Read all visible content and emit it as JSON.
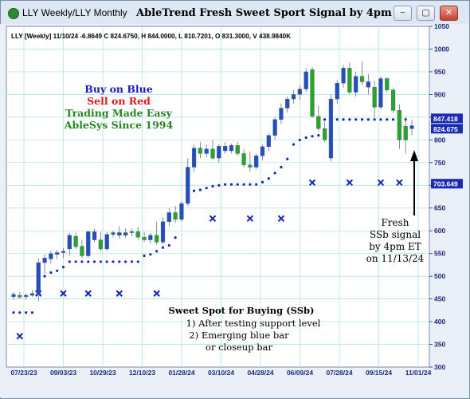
{
  "window": {
    "title": "LLY Weekly/LLY Monthly",
    "chart_title": "AbleTrend Fresh Sweet Sport Signal by 4pm ET",
    "buttons": {
      "minimize": "−",
      "restore": "▢",
      "close": "✕"
    }
  },
  "header_line": "LLY [Weekly] 11/10/24  -6.8649 C 824.6750, H 844.0000, L 810.7201, O 831.3000, V 438.9840K",
  "legend_text": [
    "Buy on Blue",
    "Sell on Red",
    "Trading Made Easy",
    "AbleSys Since 1994"
  ],
  "annotations": {
    "fresh_signal": [
      "Fresh",
      "SSb signal",
      "by 4pm ET",
      "on 11/13/24"
    ],
    "sweet_spot": [
      "Sweet Spot for Buying (SSb)",
      "1) After testing support level",
      "2) Emerging blue bar",
      "or closeup bar"
    ]
  },
  "colors": {
    "up_bar": "#2050c0",
    "down_bar": "#22a822",
    "stop_dot": "#1428b4",
    "legend_blue": "#1a1ab8",
    "legend_red": "#e01818",
    "legend_green": "#208a20",
    "grid": "#a8e0e0",
    "price_tag_bg": "#1c2cb0"
  },
  "chart_data": {
    "type": "candlestick",
    "title": "AbleTrend Fresh Sweet Sport Signal by 4pm ET",
    "x_ticks": [
      "07/23/23",
      "09/03/23",
      "10/29/23",
      "12/10/23",
      "01/28/24",
      "03/10/24",
      "04/28/24",
      "06/09/24",
      "07/28/24",
      "09/15/24",
      "11/01/24"
    ],
    "y_ticks": [
      300,
      350,
      400,
      450,
      500,
      550,
      600,
      650,
      700,
      750,
      800,
      850,
      900,
      950,
      1000,
      1050
    ],
    "ylim": [
      300,
      1050
    ],
    "price_tags": [
      {
        "label": "847.418",
        "value": 847.418
      },
      {
        "label": "824.675",
        "value": 824.675
      },
      {
        "label": "703.649",
        "value": 703.649
      }
    ],
    "candles": [
      {
        "o": 455,
        "h": 465,
        "l": 448,
        "c": 460,
        "color": "up"
      },
      {
        "o": 458,
        "h": 466,
        "l": 450,
        "c": 454,
        "color": "down"
      },
      {
        "o": 455,
        "h": 462,
        "l": 448,
        "c": 458,
        "color": "up"
      },
      {
        "o": 458,
        "h": 470,
        "l": 455,
        "c": 462,
        "color": "up"
      },
      {
        "o": 460,
        "h": 540,
        "l": 445,
        "c": 530,
        "color": "up"
      },
      {
        "o": 530,
        "h": 548,
        "l": 505,
        "c": 540,
        "color": "up"
      },
      {
        "o": 538,
        "h": 556,
        "l": 528,
        "c": 550,
        "color": "up"
      },
      {
        "o": 548,
        "h": 558,
        "l": 538,
        "c": 552,
        "color": "up"
      },
      {
        "o": 552,
        "h": 562,
        "l": 540,
        "c": 555,
        "color": "up"
      },
      {
        "o": 560,
        "h": 595,
        "l": 545,
        "c": 590,
        "color": "up"
      },
      {
        "o": 588,
        "h": 596,
        "l": 560,
        "c": 565,
        "color": "down"
      },
      {
        "o": 566,
        "h": 580,
        "l": 540,
        "c": 545,
        "color": "down"
      },
      {
        "o": 545,
        "h": 600,
        "l": 540,
        "c": 598,
        "color": "up"
      },
      {
        "o": 598,
        "h": 605,
        "l": 575,
        "c": 580,
        "color": "up"
      },
      {
        "o": 580,
        "h": 598,
        "l": 555,
        "c": 560,
        "color": "down"
      },
      {
        "o": 560,
        "h": 598,
        "l": 555,
        "c": 592,
        "color": "up"
      },
      {
        "o": 592,
        "h": 600,
        "l": 585,
        "c": 596,
        "color": "up"
      },
      {
        "o": 596,
        "h": 610,
        "l": 582,
        "c": 590,
        "color": "up"
      },
      {
        "o": 590,
        "h": 605,
        "l": 585,
        "c": 596,
        "color": "up"
      },
      {
        "o": 596,
        "h": 605,
        "l": 588,
        "c": 598,
        "color": "up"
      },
      {
        "o": 598,
        "h": 608,
        "l": 580,
        "c": 586,
        "color": "down"
      },
      {
        "o": 586,
        "h": 598,
        "l": 575,
        "c": 580,
        "color": "down"
      },
      {
        "o": 580,
        "h": 595,
        "l": 572,
        "c": 590,
        "color": "up"
      },
      {
        "o": 590,
        "h": 620,
        "l": 570,
        "c": 575,
        "color": "down"
      },
      {
        "o": 575,
        "h": 630,
        "l": 570,
        "c": 620,
        "color": "up"
      },
      {
        "o": 620,
        "h": 650,
        "l": 610,
        "c": 640,
        "color": "up"
      },
      {
        "o": 640,
        "h": 655,
        "l": 618,
        "c": 625,
        "color": "down"
      },
      {
        "o": 625,
        "h": 665,
        "l": 620,
        "c": 660,
        "color": "up"
      },
      {
        "o": 660,
        "h": 760,
        "l": 655,
        "c": 740,
        "color": "up"
      },
      {
        "o": 740,
        "h": 790,
        "l": 730,
        "c": 782,
        "color": "up"
      },
      {
        "o": 782,
        "h": 795,
        "l": 760,
        "c": 770,
        "color": "down"
      },
      {
        "o": 770,
        "h": 790,
        "l": 762,
        "c": 780,
        "color": "up"
      },
      {
        "o": 780,
        "h": 800,
        "l": 755,
        "c": 760,
        "color": "down"
      },
      {
        "o": 760,
        "h": 790,
        "l": 750,
        "c": 786,
        "color": "up"
      },
      {
        "o": 786,
        "h": 795,
        "l": 770,
        "c": 776,
        "color": "up"
      },
      {
        "o": 776,
        "h": 792,
        "l": 770,
        "c": 788,
        "color": "up"
      },
      {
        "o": 788,
        "h": 795,
        "l": 765,
        "c": 770,
        "color": "down"
      },
      {
        "o": 770,
        "h": 780,
        "l": 740,
        "c": 745,
        "color": "down"
      },
      {
        "o": 745,
        "h": 775,
        "l": 730,
        "c": 740,
        "color": "down"
      },
      {
        "o": 740,
        "h": 770,
        "l": 735,
        "c": 765,
        "color": "up"
      },
      {
        "o": 765,
        "h": 790,
        "l": 755,
        "c": 785,
        "color": "up"
      },
      {
        "o": 785,
        "h": 815,
        "l": 775,
        "c": 810,
        "color": "up"
      },
      {
        "o": 810,
        "h": 850,
        "l": 800,
        "c": 845,
        "color": "up"
      },
      {
        "o": 845,
        "h": 880,
        "l": 835,
        "c": 870,
        "color": "up"
      },
      {
        "o": 870,
        "h": 895,
        "l": 860,
        "c": 890,
        "color": "up"
      },
      {
        "o": 890,
        "h": 910,
        "l": 880,
        "c": 900,
        "color": "up"
      },
      {
        "o": 900,
        "h": 920,
        "l": 888,
        "c": 912,
        "color": "up"
      },
      {
        "o": 912,
        "h": 958,
        "l": 905,
        "c": 950,
        "color": "up"
      },
      {
        "o": 955,
        "h": 960,
        "l": 848,
        "c": 852,
        "color": "down"
      },
      {
        "o": 852,
        "h": 875,
        "l": 820,
        "c": 825,
        "color": "down"
      },
      {
        "o": 825,
        "h": 840,
        "l": 795,
        "c": 800,
        "color": "down"
      },
      {
        "o": 760,
        "h": 900,
        "l": 752,
        "c": 890,
        "color": "up"
      },
      {
        "o": 890,
        "h": 932,
        "l": 880,
        "c": 925,
        "color": "up"
      },
      {
        "o": 925,
        "h": 965,
        "l": 915,
        "c": 958,
        "color": "up"
      },
      {
        "o": 958,
        "h": 970,
        "l": 900,
        "c": 905,
        "color": "down"
      },
      {
        "o": 905,
        "h": 950,
        "l": 895,
        "c": 940,
        "color": "up"
      },
      {
        "o": 940,
        "h": 972,
        "l": 920,
        "c": 928,
        "color": "down"
      },
      {
        "o": 928,
        "h": 945,
        "l": 900,
        "c": 916,
        "color": "up"
      },
      {
        "o": 916,
        "h": 930,
        "l": 850,
        "c": 872,
        "color": "down"
      },
      {
        "o": 872,
        "h": 940,
        "l": 868,
        "c": 935,
        "color": "up"
      },
      {
        "o": 935,
        "h": 938,
        "l": 905,
        "c": 910,
        "color": "down"
      },
      {
        "o": 910,
        "h": 915,
        "l": 860,
        "c": 865,
        "color": "down"
      },
      {
        "o": 865,
        "h": 878,
        "l": 780,
        "c": 800,
        "color": "down"
      },
      {
        "o": 800,
        "h": 850,
        "l": 770,
        "c": 830,
        "color": "down"
      },
      {
        "o": 831.3,
        "h": 844,
        "l": 810.72,
        "c": 824.675,
        "color": "up"
      }
    ],
    "stop_points": [
      [
        0,
        420
      ],
      [
        1,
        420
      ],
      [
        2,
        420
      ],
      [
        3,
        420
      ],
      [
        4,
        482
      ],
      [
        5,
        500
      ],
      [
        6,
        508
      ],
      [
        7,
        512
      ],
      [
        8,
        520
      ],
      [
        9,
        532
      ],
      [
        10,
        532
      ],
      [
        11,
        532
      ],
      [
        12,
        532
      ],
      [
        13,
        532
      ],
      [
        14,
        532
      ],
      [
        15,
        532
      ],
      [
        16,
        532
      ],
      [
        17,
        532
      ],
      [
        18,
        532
      ],
      [
        19,
        532
      ],
      [
        20,
        532
      ],
      [
        21,
        545
      ],
      [
        22,
        548
      ],
      [
        23,
        555
      ],
      [
        24,
        563
      ],
      [
        25,
        568
      ],
      [
        26,
        585
      ],
      [
        27,
        630
      ],
      [
        28,
        680
      ],
      [
        29,
        688
      ],
      [
        30,
        690
      ],
      [
        31,
        694
      ],
      [
        32,
        698
      ],
      [
        33,
        700
      ],
      [
        34,
        702
      ],
      [
        35,
        702
      ],
      [
        36,
        702
      ],
      [
        37,
        702
      ],
      [
        38,
        702
      ],
      [
        39,
        702
      ],
      [
        40,
        707
      ],
      [
        41,
        715
      ],
      [
        42,
        727
      ],
      [
        43,
        740
      ],
      [
        44,
        758
      ],
      [
        45,
        790
      ],
      [
        46,
        800
      ],
      [
        47,
        805
      ],
      [
        48,
        808
      ],
      [
        49,
        810
      ],
      [
        50,
        845
      ],
      [
        51,
        845
      ],
      [
        52,
        845
      ],
      [
        53,
        845
      ],
      [
        54,
        845
      ],
      [
        55,
        845
      ],
      [
        56,
        845
      ],
      [
        57,
        845
      ],
      [
        58,
        845
      ],
      [
        59,
        845
      ],
      [
        60,
        845
      ],
      [
        61,
        845
      ],
      [
        62,
        845
      ],
      [
        63,
        845
      ]
    ],
    "sell_markers": [
      [
        1,
        368
      ],
      [
        4,
        462
      ],
      [
        8,
        462
      ],
      [
        12,
        462
      ],
      [
        17,
        462
      ],
      [
        23,
        462
      ],
      [
        32,
        627
      ],
      [
        38,
        627
      ],
      [
        43,
        627
      ],
      [
        48,
        706
      ],
      [
        54,
        706
      ],
      [
        59,
        706
      ],
      [
        62,
        706
      ]
    ]
  }
}
